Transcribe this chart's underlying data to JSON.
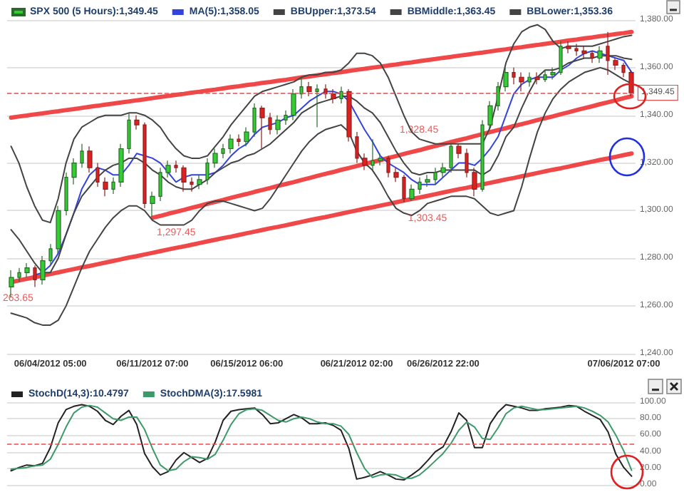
{
  "chart_data": [
    {
      "type": "candlestick",
      "categories": [
        null,
        null,
        null,
        null,
        null,
        "06/04/2012 05:00",
        null,
        null,
        null,
        null,
        null,
        null,
        null,
        null,
        null,
        null,
        null,
        null,
        "06/11/2012 07:00",
        null,
        null,
        null,
        null,
        null,
        null,
        null,
        null,
        null,
        null,
        null,
        "06/15/2012 06:00",
        null,
        null,
        null,
        null,
        null,
        null,
        null,
        null,
        null,
        null,
        null,
        null,
        null,
        "06/21/2012 02:00",
        null,
        null,
        null,
        null,
        null,
        null,
        null,
        null,
        null,
        null,
        "06/26/2012 22:00",
        null,
        null,
        null,
        null,
        null,
        null,
        null,
        null,
        null,
        null,
        null,
        null,
        null,
        null,
        null,
        null,
        null,
        null,
        null,
        null,
        null,
        null,
        "07/06/2012 07:00",
        null
      ],
      "ylim": [
        1240,
        1380
      ],
      "yticks": [
        {
          "value": 1240,
          "label": "1,240.00"
        },
        {
          "value": 1260,
          "label": "1,260.00"
        },
        {
          "value": 1280,
          "label": "1,280.00"
        },
        {
          "value": 1300,
          "label": "1,300.00"
        },
        {
          "value": 1320,
          "label": "1,320.00"
        },
        {
          "value": 1340,
          "label": "1,340.00"
        },
        {
          "value": 1360,
          "label": "1,360.00"
        },
        {
          "value": 1380,
          "label": "1,380.00"
        }
      ],
      "grid": "y",
      "legend": "top left",
      "series": [
        {
          "name": "SPX 500 (5 Hours):1,349.45",
          "ohlc": [
            [
              1268,
              1275,
              1263.65,
              1272
            ],
            [
              1272,
              1276,
              1270,
              1274
            ],
            [
              1274,
              1278,
              1272,
              1276
            ],
            [
              1276,
              1277,
              1268,
              1271
            ],
            [
              1271,
              1281,
              1269,
              1279
            ],
            [
              1279,
              1286,
              1277,
              1284
            ],
            [
              1284,
              1302,
              1282,
              1300
            ],
            [
              1300,
              1316,
              1298,
              1314
            ],
            [
              1314,
              1322,
              1311,
              1320
            ],
            [
              1320,
              1328,
              1318,
              1325
            ],
            [
              1325,
              1327,
              1316,
              1318
            ],
            [
              1318,
              1320,
              1310,
              1312
            ],
            [
              1312,
              1314,
              1306,
              1309
            ],
            [
              1309,
              1314,
              1307,
              1312
            ],
            [
              1312,
              1328,
              1310,
              1326
            ],
            [
              1326,
              1341,
              1324,
              1338
            ],
            [
              1338,
              1340,
              1334,
              1336
            ],
            [
              1336,
              1337,
              1301,
              1303
            ],
            [
              1303,
              1308,
              1297.45,
              1306
            ],
            [
              1306,
              1318,
              1304,
              1316
            ],
            [
              1316,
              1321,
              1314,
              1319
            ],
            [
              1319,
              1321,
              1316,
              1318
            ],
            [
              1318,
              1319,
              1308,
              1312
            ],
            [
              1312,
              1314,
              1308,
              1311
            ],
            [
              1311,
              1315,
              1309,
              1313
            ],
            [
              1313,
              1322,
              1311,
              1320
            ],
            [
              1320,
              1326,
              1318,
              1324
            ],
            [
              1324,
              1328,
              1322,
              1326
            ],
            [
              1326,
              1332,
              1324,
              1330
            ],
            [
              1330,
              1332,
              1327,
              1329
            ],
            [
              1329,
              1335,
              1327,
              1333
            ],
            [
              1333,
              1345,
              1331,
              1343
            ],
            [
              1343,
              1344,
              1326,
              1339
            ],
            [
              1339,
              1341,
              1332,
              1334
            ],
            [
              1334,
              1340,
              1332,
              1338
            ],
            [
              1338,
              1342,
              1336,
              1340
            ],
            [
              1340,
              1351,
              1338,
              1349
            ],
            [
              1349,
              1356,
              1347,
              1352
            ],
            [
              1352,
              1354,
              1348,
              1350
            ],
            [
              1350,
              1353,
              1335,
              1351
            ],
            [
              1351,
              1353,
              1347,
              1349
            ],
            [
              1349,
              1351,
              1345,
              1347
            ],
            [
              1347,
              1352,
              1345,
              1350
            ],
            [
              1350,
              1351,
              1329,
              1331
            ],
            [
              1331,
              1333,
              1320,
              1322
            ],
            [
              1322,
              1324,
              1317,
              1319
            ],
            [
              1319,
              1330,
              1317,
              1321
            ],
            [
              1321,
              1324,
              1319,
              1322
            ],
            [
              1322,
              1323,
              1314,
              1316
            ],
            [
              1316,
              1318,
              1312,
              1314
            ],
            [
              1314,
              1315,
              1303.45,
              1305
            ],
            [
              1305,
              1311,
              1304,
              1309
            ],
            [
              1309,
              1314,
              1307,
              1312
            ],
            [
              1312,
              1315,
              1310,
              1313
            ],
            [
              1313,
              1318,
              1311,
              1316
            ],
            [
              1316,
              1320,
              1314,
              1318
            ],
            [
              1318,
              1328.45,
              1316,
              1327
            ],
            [
              1327,
              1328,
              1322,
              1324
            ],
            [
              1324,
              1326,
              1314,
              1316
            ],
            [
              1316,
              1318,
              1306,
              1309
            ],
            [
              1309,
              1338,
              1308,
              1336
            ],
            [
              1336,
              1346,
              1334,
              1344
            ],
            [
              1344,
              1354,
              1342,
              1352
            ],
            [
              1352,
              1360,
              1350,
              1358
            ],
            [
              1358,
              1360,
              1353,
              1356
            ],
            [
              1356,
              1358,
              1350,
              1354
            ],
            [
              1354,
              1358,
              1352,
              1356
            ],
            [
              1356,
              1358,
              1353,
              1355
            ],
            [
              1355,
              1359,
              1354,
              1357
            ],
            [
              1357,
              1360,
              1355,
              1358
            ],
            [
              1358,
              1371,
              1357,
              1369
            ],
            [
              1369,
              1371,
              1366,
              1368
            ],
            [
              1368,
              1370,
              1365,
              1367
            ],
            [
              1367,
              1369,
              1364,
              1366
            ],
            [
              1366,
              1367,
              1362,
              1364
            ],
            [
              1364,
              1369,
              1362,
              1367
            ],
            [
              1369,
              1375,
              1357,
              1363
            ],
            [
              1363,
              1364,
              1359,
              1361
            ],
            [
              1361,
              1362,
              1356,
              1358
            ],
            [
              1358,
              1359,
              1348,
              1349.45
            ]
          ]
        },
        {
          "type": "line",
          "name": "MA(5):1,358.05",
          "color": "#3344dd",
          "values": [
            null,
            null,
            null,
            1273,
            1274,
            1277,
            1282,
            1290,
            1299,
            1309,
            1315,
            1318,
            1317,
            1315,
            1315,
            1319,
            1324,
            1323,
            1322,
            1320,
            1316,
            1312,
            1314,
            1315,
            1315,
            1315,
            1316,
            1319,
            1323,
            1326,
            1328,
            1332,
            1335,
            1336,
            1337,
            1339,
            1340,
            1343,
            1346,
            1348,
            1350,
            1350,
            1349,
            1346,
            1340,
            1334,
            1329,
            1323,
            1320,
            1318,
            1316,
            1313,
            1311,
            1311,
            1311,
            1314,
            1317,
            1320,
            1320,
            1319,
            1322,
            1326,
            1331,
            1340,
            1349,
            1353,
            1355,
            1356,
            1356,
            1356,
            1359,
            1361,
            1364,
            1366,
            1367,
            1366,
            1365,
            1364,
            1363,
            1358.05
          ]
        },
        {
          "type": "line",
          "name": "BBUpper:1,373.54",
          "color": "#444444",
          "values": [
            1327,
            1320,
            1310,
            1302,
            1296,
            1295,
            1305,
            1320,
            1330,
            1335,
            1337,
            1339,
            1340,
            1340,
            1340,
            1341,
            1341,
            1340,
            1338,
            1335,
            1330,
            1326,
            1323,
            1322,
            1322,
            1323,
            1327,
            1331,
            1336,
            1340,
            1344,
            1348,
            1350,
            1351,
            1352,
            1353,
            1354,
            1356,
            1357,
            1357,
            1358,
            1358,
            1359,
            1362,
            1366,
            1366,
            1365,
            1362,
            1356,
            1348,
            1340,
            1333,
            1330,
            1329,
            1328,
            1328,
            1328,
            1328,
            1328,
            1328,
            1328,
            1335,
            1348,
            1362,
            1370,
            1375,
            1377,
            1378,
            1376,
            1371,
            1368,
            1369,
            1369,
            1369,
            1369,
            1370,
            1371,
            1372,
            1373,
            1373.54
          ]
        },
        {
          "type": "line",
          "name": "BBMiddle:1,363.45",
          "color": "#444444",
          "values": [
            1292,
            1288,
            1283,
            1278,
            1274,
            1274,
            1280,
            1290,
            1299,
            1306,
            1310,
            1314,
            1317,
            1319,
            1320,
            1322,
            1322,
            1320,
            1317,
            1315,
            1312,
            1310,
            1309,
            1309,
            1311,
            1313,
            1316,
            1318,
            1320,
            1321,
            1323,
            1324,
            1326,
            1328,
            1331,
            1334,
            1337,
            1341,
            1343,
            1345,
            1346,
            1347,
            1348,
            1348,
            1346,
            1343,
            1341,
            1337,
            1331,
            1325,
            1320,
            1316,
            1315,
            1316,
            1316,
            1317,
            1317,
            1317,
            1317,
            1317,
            1315,
            1317,
            1323,
            1331,
            1335,
            1343,
            1350,
            1356,
            1359,
            1359,
            1360,
            1362,
            1363,
            1364,
            1364,
            1365,
            1365,
            1365,
            1364,
            1363.45
          ]
        },
        {
          "type": "line",
          "name": "BBLower:1,353.36",
          "color": "#444444",
          "values": [
            1257,
            1256,
            1255,
            1253,
            1252,
            1252,
            1254,
            1260,
            1268,
            1276,
            1283,
            1288,
            1293,
            1297,
            1300,
            1302,
            1302,
            1300,
            1296,
            1294,
            1294,
            1294,
            1294,
            1296,
            1300,
            1303,
            1304,
            1304,
            1303,
            1302,
            1301,
            1300,
            1301,
            1305,
            1310,
            1315,
            1320,
            1325,
            1329,
            1332,
            1334,
            1335,
            1336,
            1333,
            1325,
            1320,
            1317,
            1312,
            1306,
            1301,
            1299,
            1298,
            1300,
            1303,
            1304,
            1305,
            1306,
            1306,
            1306,
            1305,
            1302,
            1299,
            1298,
            1299,
            1300,
            1310,
            1322,
            1333,
            1341,
            1347,
            1351,
            1354,
            1356,
            1358,
            1359,
            1360,
            1359,
            1357,
            1355,
            1353.36
          ]
        },
        {
          "type": "line",
          "color": "#f04848",
          "values": [
            1339.0,
            1339.5,
            1339.9,
            1340.4,
            1340.8,
            1341.3,
            1341.7,
            1342.2,
            1342.6,
            1343.1,
            1343.6,
            1344.0,
            1344.5,
            1344.9,
            1345.4,
            1345.8,
            1346.3,
            1346.7,
            1347.2,
            1347.7,
            1348.1,
            1348.6,
            1349.0,
            1349.5,
            1349.9,
            1350.4,
            1350.8,
            1351.3,
            1351.8,
            1352.2,
            1352.7,
            1353.1,
            1353.6,
            1354.0,
            1354.5,
            1354.9,
            1355.4,
            1355.9,
            1356.3,
            1356.8,
            1357.2,
            1357.7,
            1358.1,
            1358.6,
            1359.1,
            1359.5,
            1360.0,
            1360.4,
            1360.9,
            1361.3,
            1361.8,
            1362.2,
            1362.7,
            1363.2,
            1363.6,
            1364.1,
            1364.5,
            1365.0,
            1365.4,
            1365.9,
            1366.3,
            1366.8,
            1367.3,
            1367.7,
            1368.2,
            1368.6,
            1369.1,
            1369.5,
            1370.0,
            1370.4,
            1370.9,
            1371.4,
            1371.8,
            1372.3,
            1372.7,
            1373.2,
            1373.6,
            1374.1,
            1374.5,
            1375.0
          ]
        },
        {
          "type": "line",
          "color": "#f04848",
          "values": [
            null,
            null,
            null,
            null,
            null,
            null,
            null,
            null,
            null,
            null,
            null,
            null,
            null,
            null,
            null,
            null,
            null,
            null,
            1297.0,
            1297.8,
            1298.7,
            1299.5,
            1300.3,
            1301.2,
            1302.0,
            1302.9,
            1303.7,
            1304.5,
            1305.4,
            1306.2,
            1307.0,
            1307.9,
            1308.7,
            1309.5,
            1310.4,
            1311.2,
            1312.0,
            1312.9,
            1313.7,
            1314.6,
            1315.4,
            1316.2,
            1317.1,
            1317.9,
            1318.7,
            1319.6,
            1320.4,
            1321.2,
            1322.1,
            1322.9,
            1323.8,
            1324.6,
            1325.4,
            1326.3,
            1327.1,
            1327.9,
            1328.8,
            1329.6,
            1330.4,
            1331.3,
            1332.1,
            1333.0,
            1333.8,
            1334.6,
            1335.5,
            1336.3,
            1337.1,
            1338.0,
            1338.8,
            1339.6,
            1340.5,
            1341.3,
            1342.2,
            1343.0,
            1343.8,
            1344.7,
            1345.5,
            1346.3,
            1347.2,
            1348.0
          ]
        },
        {
          "type": "line",
          "color": "#f04848",
          "values": [
            1270.0,
            1270.7,
            1271.4,
            1272.1,
            1272.7,
            1273.4,
            1274.1,
            1274.8,
            1275.5,
            1276.2,
            1276.8,
            1277.5,
            1278.2,
            1278.9,
            1279.6,
            1280.3,
            1280.9,
            1281.6,
            1282.3,
            1283.0,
            1283.7,
            1284.4,
            1285.0,
            1285.7,
            1286.4,
            1287.1,
            1287.8,
            1288.5,
            1289.1,
            1289.8,
            1290.5,
            1291.2,
            1291.9,
            1292.6,
            1293.2,
            1293.9,
            1294.6,
            1295.3,
            1296.0,
            1296.7,
            1297.3,
            1298.0,
            1298.7,
            1299.4,
            1300.1,
            1300.8,
            1301.4,
            1302.1,
            1302.8,
            1303.5,
            1304.2,
            1304.9,
            1305.5,
            1306.2,
            1306.9,
            1307.6,
            1308.3,
            1309.0,
            1309.6,
            1310.3,
            1311.0,
            1311.7,
            1312.4,
            1313.1,
            1313.7,
            1314.4,
            1315.1,
            1315.8,
            1316.5,
            1317.2,
            1317.8,
            1318.5,
            1319.2,
            1319.9,
            1320.6,
            1321.3,
            1321.9,
            1322.6,
            1323.3,
            1324.0
          ]
        }
      ],
      "ref_lines": [
        {
          "axis": "y",
          "value": 1349.45,
          "label": "1,349.45",
          "color": "#e05050",
          "line_style": "dashed"
        }
      ],
      "annotations": [
        "263.65",
        {
          "text": "1,297.45",
          "y": 1297.45
        },
        {
          "text": "1,303.45",
          "y": 1303.45
        },
        {
          "text": "1,328.45",
          "y": 1328.45
        }
      ]
    },
    {
      "type": "line",
      "categories": [
        null,
        null,
        null,
        null,
        null,
        null,
        null,
        null,
        null,
        null,
        null,
        null,
        null,
        null,
        null,
        null,
        null,
        null,
        null,
        null,
        null,
        null,
        null,
        null,
        null,
        null,
        null,
        null,
        null,
        null,
        null,
        null,
        null,
        null,
        null,
        null,
        null,
        null,
        null,
        null,
        null,
        null,
        null,
        null,
        null,
        null,
        null,
        null,
        null,
        null,
        null,
        null,
        null,
        null,
        null,
        null,
        null,
        null,
        null,
        null,
        null,
        null,
        null,
        null,
        null,
        null,
        null,
        null,
        null,
        null,
        null,
        null,
        null,
        null,
        null,
        null,
        null,
        null,
        null,
        null
      ],
      "ylim": [
        0,
        100
      ],
      "yticks": [
        {
          "value": 0,
          "label": "0.00"
        },
        {
          "value": 20,
          "label": "20.00"
        },
        {
          "value": 40,
          "label": "40.00"
        },
        {
          "value": 60,
          "label": "60.00"
        },
        {
          "value": 80,
          "label": "80.00"
        },
        {
          "value": 100,
          "label": "100.00"
        }
      ],
      "grid": "y",
      "legend": "top left",
      "tick_labels": "y",
      "series": [
        {
          "name": "StochD(14,3):10.4797",
          "color": "#222222",
          "values": [
            17,
            21,
            24,
            23,
            26,
            45,
            75,
            91,
            95,
            97,
            95,
            89,
            78,
            73,
            83,
            90,
            73,
            38,
            22,
            12,
            16,
            30,
            39,
            33,
            27,
            32,
            52,
            78,
            89,
            91,
            92,
            93,
            85,
            74,
            75,
            80,
            85,
            81,
            74,
            74,
            75,
            72,
            66,
            44,
            7,
            9,
            12,
            16,
            12,
            7,
            6,
            12,
            19,
            29,
            40,
            46,
            64,
            87,
            78,
            45,
            45,
            74,
            88,
            97,
            95,
            93,
            90,
            90,
            92,
            93,
            94,
            96,
            95,
            89,
            84,
            79,
            64,
            37,
            21,
            10.4797
          ]
        },
        {
          "name": "StochDMA(3):17.5981",
          "color": "#3c9a6a",
          "values": [
            19,
            20,
            21,
            23,
            24,
            31,
            49,
            70,
            87,
            94,
            96,
            94,
            87,
            80,
            78,
            82,
            82,
            67,
            44,
            24,
            17,
            19,
            28,
            34,
            33,
            31,
            37,
            54,
            73,
            86,
            91,
            92,
            90,
            84,
            78,
            76,
            80,
            82,
            80,
            76,
            74,
            74,
            71,
            61,
            39,
            20,
            9,
            12,
            13,
            12,
            8,
            8,
            12,
            20,
            29,
            38,
            50,
            66,
            76,
            70,
            56,
            55,
            69,
            86,
            93,
            95,
            93,
            91,
            91,
            92,
            93,
            94,
            95,
            93,
            89,
            84,
            76,
            60,
            41,
            17.5981
          ]
        }
      ],
      "ref_lines": [
        {
          "axis": "y",
          "value": 50,
          "color": "#f04848",
          "line_style": "dashed"
        }
      ]
    }
  ]
}
